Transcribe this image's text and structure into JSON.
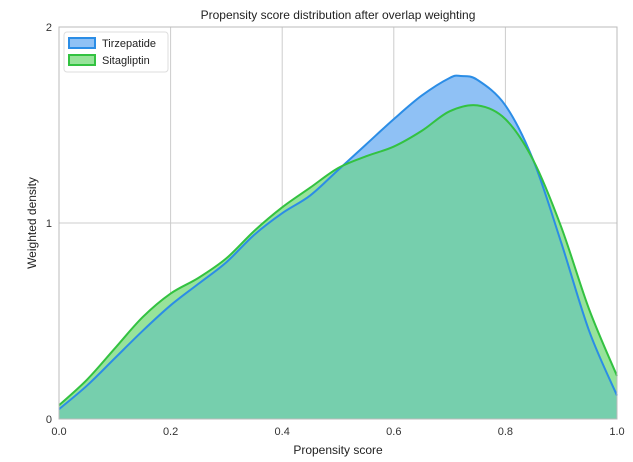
{
  "chart_data": {
    "type": "area",
    "title": "Propensity score distribution after overlap weighting",
    "xlabel": "Propensity score",
    "ylabel": "Weighted density",
    "xlim": [
      0.0,
      1.0
    ],
    "ylim": [
      0,
      2
    ],
    "x_ticks": [
      "0.0",
      "0.2",
      "0.4",
      "0.6",
      "0.8",
      "1.0"
    ],
    "y_ticks": [
      "0",
      "1",
      "2"
    ],
    "grid": true,
    "legend_position": "top-left",
    "series": [
      {
        "name": "Tirzepatide",
        "color": "#2b8de6",
        "fill": "#8fc1f5",
        "x": [
          0.0,
          0.05,
          0.1,
          0.15,
          0.2,
          0.25,
          0.3,
          0.35,
          0.4,
          0.45,
          0.5,
          0.55,
          0.6,
          0.65,
          0.7,
          0.72,
          0.75,
          0.8,
          0.85,
          0.9,
          0.95,
          1.0
        ],
        "y": [
          0.05,
          0.17,
          0.31,
          0.45,
          0.58,
          0.69,
          0.8,
          0.94,
          1.05,
          1.14,
          1.27,
          1.4,
          1.53,
          1.65,
          1.74,
          1.75,
          1.73,
          1.6,
          1.32,
          0.9,
          0.45,
          0.12
        ]
      },
      {
        "name": "Sitagliptin",
        "color": "#33c241",
        "fill": "#97e39a",
        "x": [
          0.0,
          0.05,
          0.1,
          0.15,
          0.2,
          0.25,
          0.3,
          0.35,
          0.4,
          0.45,
          0.5,
          0.55,
          0.6,
          0.65,
          0.7,
          0.75,
          0.8,
          0.85,
          0.9,
          0.95,
          1.0
        ],
        "y": [
          0.07,
          0.2,
          0.36,
          0.52,
          0.64,
          0.72,
          0.82,
          0.96,
          1.08,
          1.18,
          1.28,
          1.34,
          1.39,
          1.47,
          1.57,
          1.6,
          1.53,
          1.32,
          0.98,
          0.56,
          0.22
        ]
      }
    ]
  },
  "colors": {
    "overlap": "#76cfad",
    "grid": "#cccccc",
    "axes_edge": "#bbbbbb"
  }
}
